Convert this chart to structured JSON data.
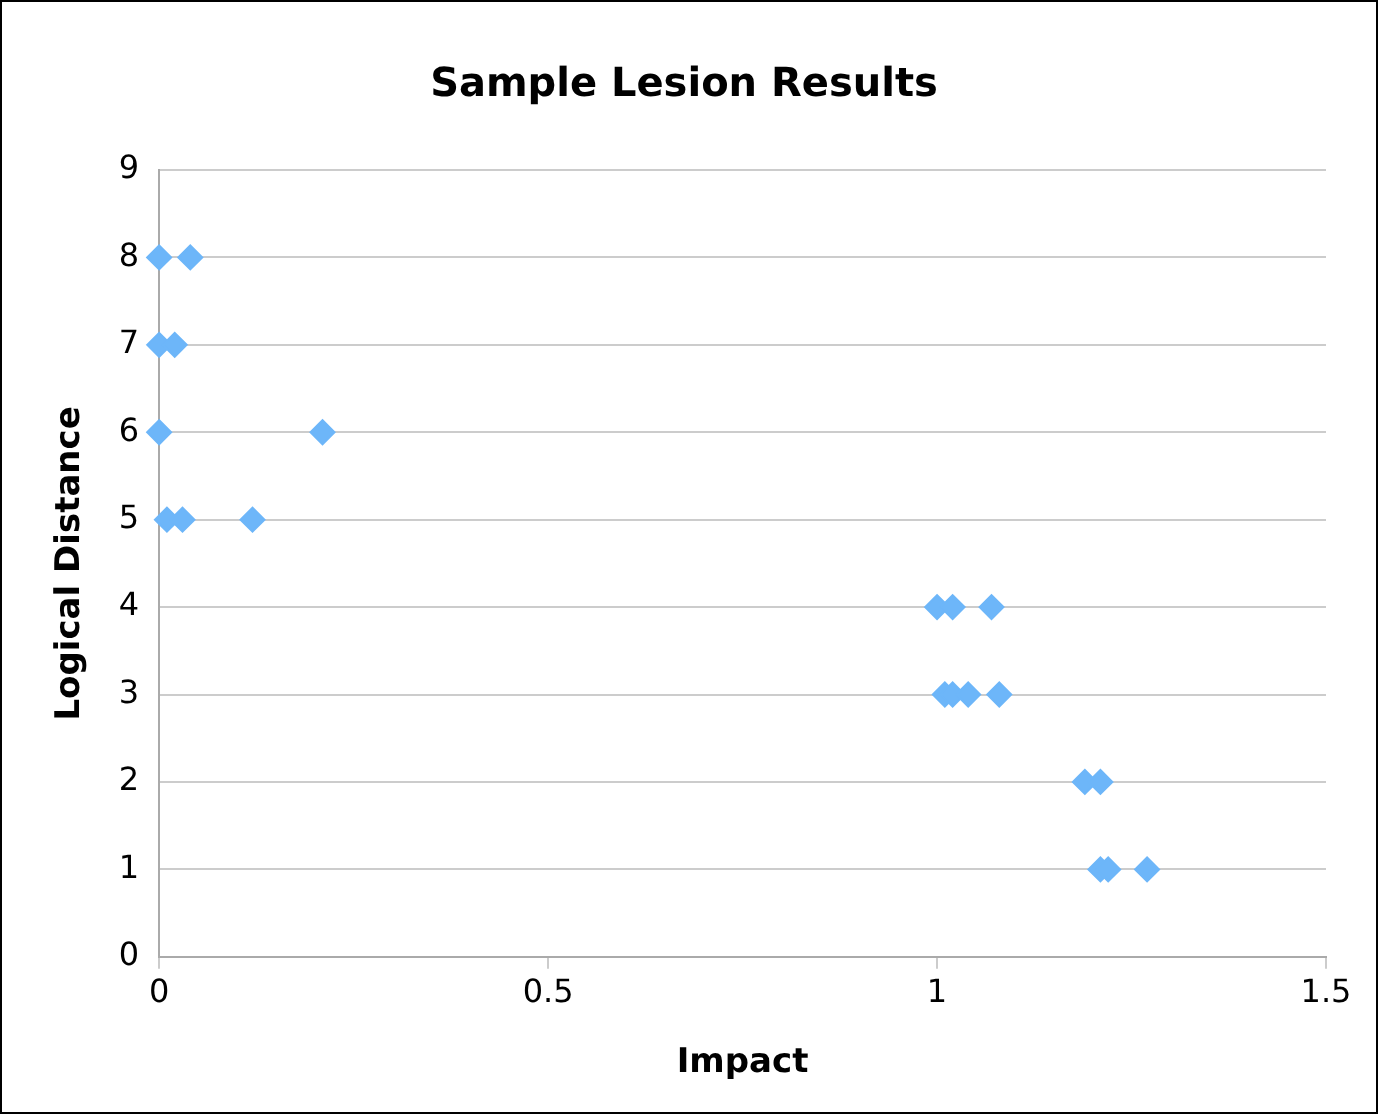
{
  "chart_data": {
    "type": "scatter",
    "title": "Sample Lesion Results",
    "xlabel": "Impact",
    "ylabel": "Logical Distance",
    "x": [
      0,
      0.04,
      0,
      0.02,
      0,
      0.21,
      0.01,
      0.03,
      0.12,
      1.0,
      1.02,
      1.07,
      1.01,
      1.02,
      1.04,
      1.08,
      1.19,
      1.2,
      1.21,
      1.21,
      1.22,
      1.27
    ],
    "series": [
      {
        "color": "#6db6f9",
        "values": [
          8,
          8,
          7,
          7,
          6,
          6,
          5,
          5,
          5,
          4,
          4,
          4,
          3,
          3,
          3,
          3,
          2,
          null,
          2,
          1,
          1,
          1
        ]
      }
    ],
    "xlim": [
      0,
      1.5
    ],
    "xticks": [
      0,
      0.5,
      1,
      1.5
    ],
    "ylim": [
      0,
      9
    ],
    "yticks": [
      0,
      1,
      2,
      3,
      4,
      5,
      6,
      7,
      8,
      9
    ],
    "grid": "y",
    "legend": false,
    "marker": "diamond"
  }
}
